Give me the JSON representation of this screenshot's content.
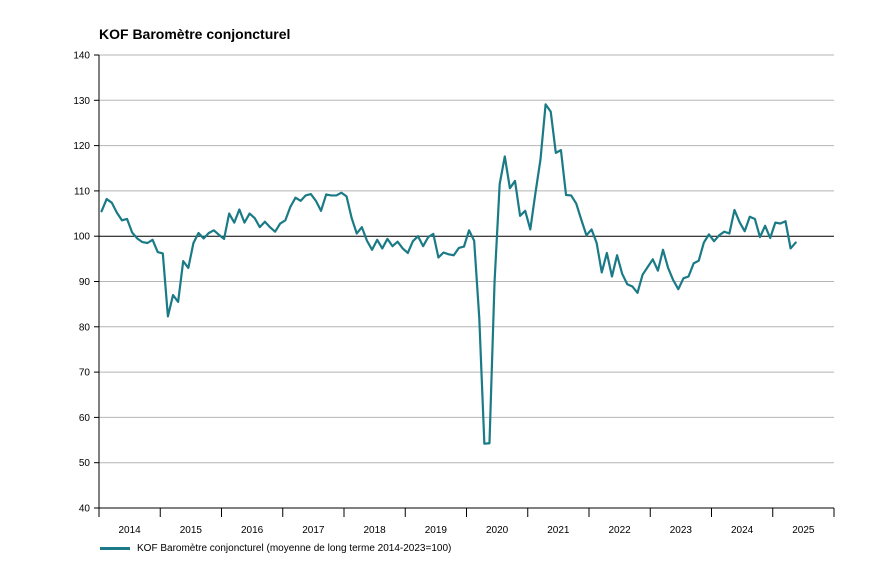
{
  "chart_data": {
    "type": "line",
    "title": "KOF Baromètre conjoncturel",
    "xlabel": "",
    "ylabel": "",
    "ylim": [
      40,
      140
    ],
    "yticks": [
      40,
      50,
      60,
      70,
      80,
      90,
      100,
      110,
      120,
      130,
      140
    ],
    "x_start": "2014-01",
    "x_end": "2025-12",
    "x_tick_labels": [
      "2014",
      "2015",
      "2016",
      "2017",
      "2018",
      "2019",
      "2020",
      "2021",
      "2022",
      "2023",
      "2024",
      "2025"
    ],
    "reference_line": 100,
    "grid": "horizontal",
    "legend_position": "bottom-left",
    "series": [
      {
        "name": "KOF Baromètre conjoncturel (moyenne de long terme 2014-2023=100)",
        "color": "#1a7a86",
        "start": "2014-01",
        "frequency": "monthly",
        "values": [
          105.5,
          108.2,
          107.4,
          105.2,
          103.5,
          103.8,
          100.8,
          99.5,
          98.7,
          98.5,
          99.2,
          96.5,
          96.2,
          82.3,
          87.0,
          85.5,
          94.5,
          93.0,
          98.5,
          100.7,
          99.5,
          100.7,
          101.3,
          100.3,
          99.4,
          105.0,
          103.0,
          105.9,
          103.0,
          105.0,
          104.0,
          102.0,
          103.2,
          102.0,
          101.0,
          102.8,
          103.5,
          106.5,
          108.5,
          107.8,
          109.0,
          109.3,
          107.8,
          105.6,
          109.2,
          109.0,
          109.0,
          109.6,
          108.8,
          104.0,
          100.6,
          102.0,
          99.0,
          97.0,
          99.2,
          97.3,
          99.4,
          97.8,
          98.8,
          97.3,
          96.3,
          98.9,
          100.0,
          97.8,
          99.8,
          100.5,
          95.3,
          96.4,
          96.0,
          95.8,
          97.4,
          97.7,
          101.3,
          99.0,
          82.0,
          54.2,
          54.3,
          90.0,
          111.5,
          117.6,
          110.6,
          112.2,
          104.5,
          105.6,
          101.5,
          109.5,
          117.0,
          129.1,
          127.5,
          118.4,
          119.0,
          109.1,
          109.0,
          107.2,
          103.6,
          100.2,
          101.5,
          98.5,
          92.0,
          96.3,
          91.1,
          95.8,
          91.7,
          89.4,
          88.9,
          87.5,
          91.5,
          93.2,
          94.9,
          92.4,
          97.0,
          93.0,
          90.3,
          88.3,
          90.7,
          91.1,
          94.0,
          94.6,
          98.6,
          100.4,
          98.9,
          100.2,
          101.0,
          100.6,
          105.8,
          103.1,
          101.1,
          104.3,
          103.8,
          99.8,
          102.3,
          99.6,
          103.0,
          102.8,
          103.3,
          97.3,
          98.6
        ]
      }
    ]
  }
}
